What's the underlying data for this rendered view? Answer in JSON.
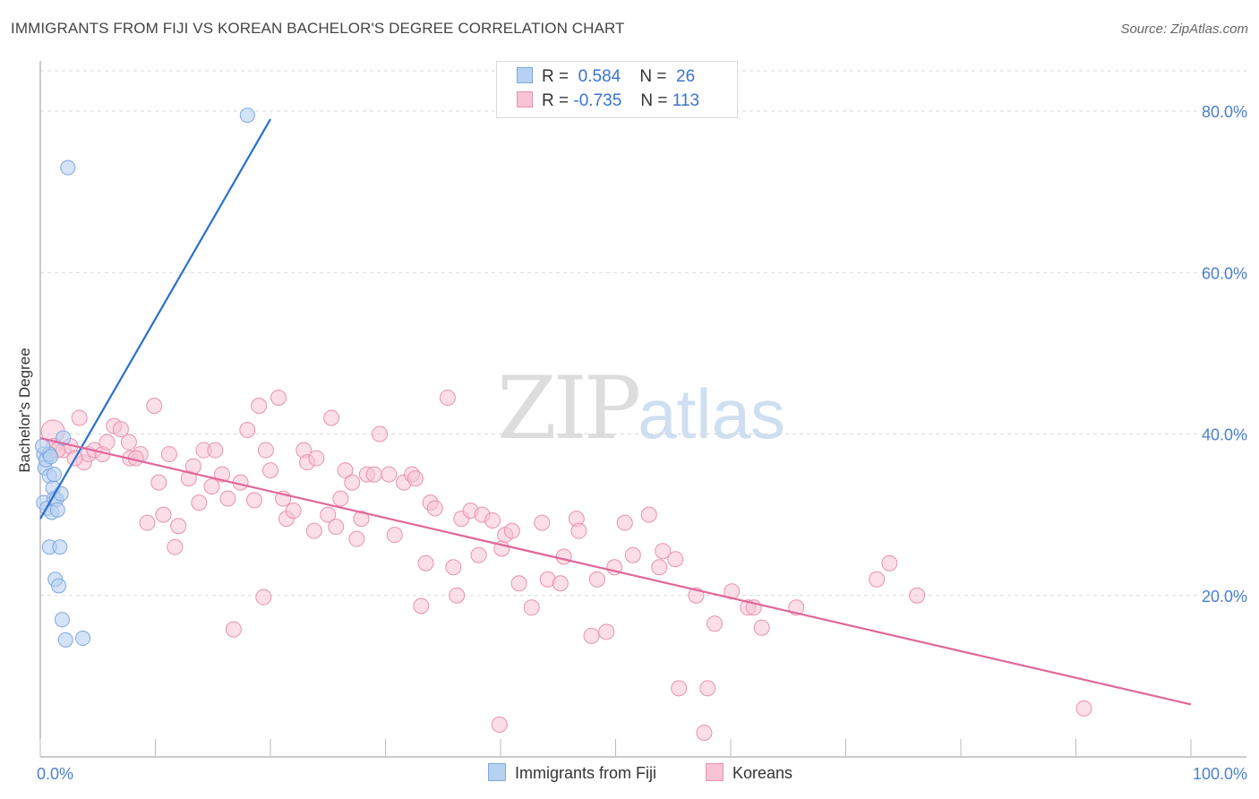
{
  "header": {
    "title": "IMMIGRANTS FROM FIJI VS KOREAN BACHELOR'S DEGREE CORRELATION CHART",
    "source": "Source: ZipAtlas.com"
  },
  "watermark": {
    "zip": "ZIP",
    "atlas": "atlas"
  },
  "legend": {
    "rows": [
      {
        "r_label": "R =",
        "r_value": "0.584",
        "n_label": "N =",
        "n_value": "26"
      },
      {
        "r_label": "R =",
        "r_value": "-0.735",
        "n_label": "N =",
        "n_value": "113"
      }
    ]
  },
  "bottom_legend": {
    "fiji": "Immigrants from Fiji",
    "koreans": "Koreans"
  },
  "colors": {
    "fiji_fill": "#b7d1f2",
    "fiji_stroke": "#7ea7df",
    "fiji_line": "#2a6fcf",
    "korean_fill": "#f8c3d4",
    "korean_stroke": "#e792b0",
    "korean_line": "#e0679a",
    "tick_text": "#4a7fd0",
    "grid": "#d9d9d9"
  },
  "chart_data": {
    "type": "scatter",
    "title": "IMMIGRANTS FROM FIJI VS KOREAN BACHELOR'S DEGREE CORRELATION CHART",
    "xlabel": "",
    "ylabel": "Bachelor's Degree",
    "xlim": [
      0,
      100
    ],
    "ylim": [
      0,
      85
    ],
    "x_tick_labels": [
      {
        "value": 0,
        "label": "0.0%"
      },
      {
        "value": 100,
        "label": "100.0%"
      }
    ],
    "y_tick_labels": [
      {
        "value": 20,
        "label": "20.0%"
      },
      {
        "value": 40,
        "label": "40.0%"
      },
      {
        "value": 60,
        "label": "60.0%"
      },
      {
        "value": 80,
        "label": "80.0%"
      }
    ],
    "grid": true,
    "legend_position": "top-center",
    "series": [
      {
        "name": "Immigrants from Fiji",
        "points": [
          [
            0.3,
            37.5
          ],
          [
            0.3,
            31.5
          ],
          [
            0.4,
            35.8
          ],
          [
            0.5,
            36.8
          ],
          [
            0.6,
            30.8
          ],
          [
            0.8,
            34.8
          ],
          [
            0.8,
            37.5
          ],
          [
            0.8,
            26.0
          ],
          [
            1.0,
            30.3
          ],
          [
            1.1,
            33.3
          ],
          [
            1.2,
            35.0
          ],
          [
            1.2,
            32.0
          ],
          [
            1.3,
            22.0
          ],
          [
            1.4,
            31.9
          ],
          [
            1.5,
            30.6
          ],
          [
            1.6,
            21.2
          ],
          [
            1.7,
            26.0
          ],
          [
            1.8,
            32.6
          ],
          [
            1.9,
            17.0
          ],
          [
            2.0,
            39.5
          ],
          [
            2.2,
            14.5
          ],
          [
            2.4,
            73.0
          ],
          [
            3.7,
            14.7
          ],
          [
            18.0,
            79.5
          ],
          [
            0.2,
            38.5
          ],
          [
            0.9,
            37.2
          ]
        ],
        "trendline": {
          "x": [
            0.0,
            20.0
          ],
          "y": [
            29.5,
            79.0
          ]
        }
      },
      {
        "name": "Koreans",
        "points": [
          [
            1.1,
            40.3
          ],
          [
            1.2,
            38.5
          ],
          [
            2.0,
            38.0
          ],
          [
            2.6,
            38.5
          ],
          [
            3.4,
            42.0
          ],
          [
            3.8,
            36.5
          ],
          [
            4.2,
            37.5
          ],
          [
            4.7,
            38.0
          ],
          [
            5.4,
            37.5
          ],
          [
            5.8,
            39.0
          ],
          [
            6.4,
            41.0
          ],
          [
            7.0,
            40.6
          ],
          [
            7.7,
            39.0
          ],
          [
            7.8,
            37.0
          ],
          [
            8.7,
            37.5
          ],
          [
            9.3,
            29.0
          ],
          [
            9.9,
            43.5
          ],
          [
            10.3,
            34.0
          ],
          [
            10.7,
            30.0
          ],
          [
            11.2,
            37.5
          ],
          [
            11.7,
            26.0
          ],
          [
            12.0,
            28.6
          ],
          [
            12.9,
            34.5
          ],
          [
            13.3,
            36.0
          ],
          [
            13.8,
            31.5
          ],
          [
            14.2,
            38.0
          ],
          [
            14.9,
            33.5
          ],
          [
            15.2,
            38.0
          ],
          [
            15.8,
            35.0
          ],
          [
            16.3,
            32.0
          ],
          [
            16.8,
            15.8
          ],
          [
            17.4,
            34.0
          ],
          [
            18.0,
            40.5
          ],
          [
            18.6,
            31.8
          ],
          [
            19.0,
            43.5
          ],
          [
            19.4,
            19.8
          ],
          [
            19.6,
            38.0
          ],
          [
            20.0,
            35.5
          ],
          [
            20.7,
            44.5
          ],
          [
            21.1,
            32.0
          ],
          [
            21.4,
            29.5
          ],
          [
            22.0,
            30.5
          ],
          [
            22.9,
            38.0
          ],
          [
            23.2,
            36.5
          ],
          [
            23.8,
            28.0
          ],
          [
            24.0,
            37.0
          ],
          [
            25.0,
            30.0
          ],
          [
            25.3,
            42.0
          ],
          [
            25.7,
            28.5
          ],
          [
            26.1,
            32.0
          ],
          [
            26.5,
            35.5
          ],
          [
            27.1,
            34.0
          ],
          [
            27.5,
            27.0
          ],
          [
            27.9,
            29.5
          ],
          [
            28.4,
            35.0
          ],
          [
            29.0,
            35.0
          ],
          [
            29.5,
            40.0
          ],
          [
            30.3,
            35.0
          ],
          [
            30.8,
            27.5
          ],
          [
            31.6,
            34.0
          ],
          [
            32.3,
            35.0
          ],
          [
            32.6,
            34.5
          ],
          [
            33.1,
            18.7
          ],
          [
            33.5,
            24.0
          ],
          [
            33.9,
            31.5
          ],
          [
            34.3,
            30.8
          ],
          [
            35.4,
            44.5
          ],
          [
            35.9,
            23.5
          ],
          [
            36.2,
            20.0
          ],
          [
            36.6,
            29.5
          ],
          [
            37.4,
            30.5
          ],
          [
            38.1,
            25.0
          ],
          [
            38.4,
            30.0
          ],
          [
            39.3,
            29.3
          ],
          [
            39.9,
            4.0
          ],
          [
            40.1,
            25.8
          ],
          [
            40.4,
            27.5
          ],
          [
            41.0,
            28.0
          ],
          [
            41.6,
            21.5
          ],
          [
            42.7,
            18.5
          ],
          [
            44.1,
            22.0
          ],
          [
            45.2,
            21.5
          ],
          [
            45.5,
            24.8
          ],
          [
            46.6,
            29.5
          ],
          [
            46.8,
            28.0
          ],
          [
            47.9,
            15.0
          ],
          [
            48.4,
            22.0
          ],
          [
            49.2,
            15.5
          ],
          [
            49.9,
            23.5
          ],
          [
            50.8,
            29.0
          ],
          [
            51.5,
            25.0
          ],
          [
            52.9,
            30.0
          ],
          [
            53.8,
            23.5
          ],
          [
            54.1,
            25.5
          ],
          [
            55.2,
            24.5
          ],
          [
            55.5,
            8.5
          ],
          [
            57.0,
            20.0
          ],
          [
            57.7,
            3.0
          ],
          [
            58.0,
            8.5
          ],
          [
            58.6,
            16.5
          ],
          [
            60.1,
            20.5
          ],
          [
            61.5,
            18.5
          ],
          [
            62.0,
            18.5
          ],
          [
            62.7,
            16.0
          ],
          [
            65.7,
            18.5
          ],
          [
            72.7,
            22.0
          ],
          [
            73.8,
            24.0
          ],
          [
            76.2,
            20.0
          ],
          [
            90.7,
            6.0
          ],
          [
            1.5,
            38.0
          ],
          [
            3.0,
            37.0
          ],
          [
            8.3,
            37.0
          ],
          [
            43.6,
            29.0
          ]
        ],
        "trendline": {
          "x": [
            0.0,
            100.0
          ],
          "y": [
            39.5,
            6.5
          ]
        }
      }
    ]
  }
}
